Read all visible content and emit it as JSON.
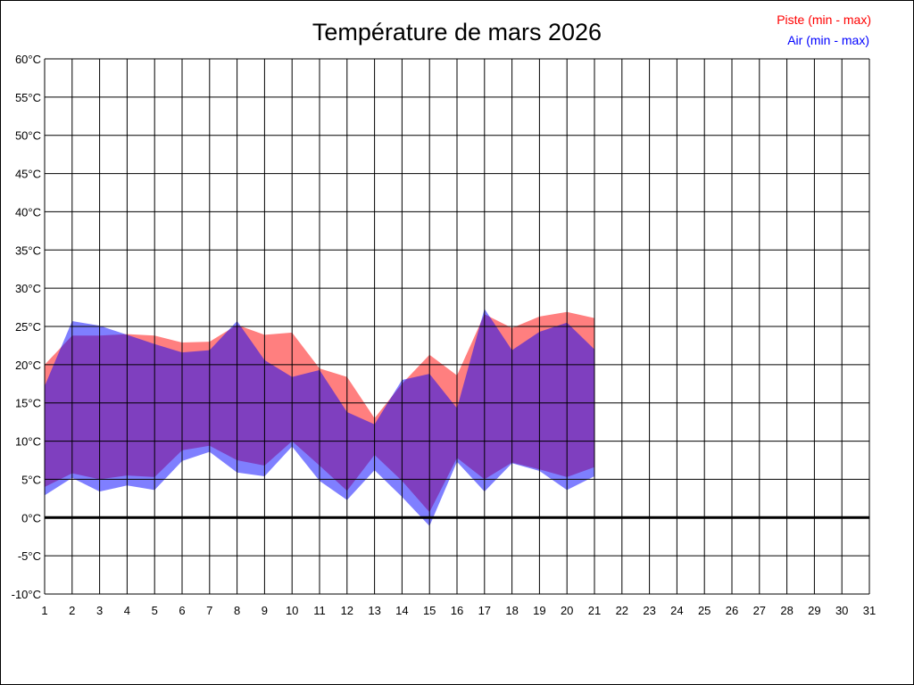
{
  "chart_data": {
    "type": "area",
    "title": "Température de mars 2026",
    "x": [
      1,
      2,
      3,
      4,
      5,
      6,
      7,
      8,
      9,
      10,
      11,
      12,
      13,
      14,
      15,
      16,
      17,
      18,
      19,
      20,
      21
    ],
    "x_ticks": [
      "1",
      "2",
      "3",
      "4",
      "5",
      "6",
      "7",
      "8",
      "9",
      "10",
      "11",
      "12",
      "13",
      "14",
      "15",
      "16",
      "17",
      "18",
      "19",
      "20",
      "21",
      "22",
      "23",
      "24",
      "25",
      "26",
      "27",
      "28",
      "29",
      "30",
      "31"
    ],
    "y_ticks": [
      "60°C",
      "55°C",
      "50°C",
      "45°C",
      "40°C",
      "35°C",
      "30°C",
      "25°C",
      "20°C",
      "15°C",
      "10°C",
      "5°C",
      "0°C",
      "-5°C",
      "-10°C"
    ],
    "xlim": [
      1,
      31
    ],
    "ylim": [
      -10,
      60
    ],
    "grid": true,
    "legend_position": "top-right",
    "series": [
      {
        "name": "Piste (min - max)",
        "color": "#ff0000",
        "min": [
          4.0,
          5.8,
          5.0,
          5.5,
          5.3,
          8.8,
          9.4,
          7.5,
          6.8,
          10.0,
          6.8,
          3.5,
          8.2,
          4.8,
          0.7,
          7.8,
          5.0,
          7.2,
          6.3,
          5.3,
          6.6
        ],
        "max": [
          20.0,
          23.8,
          23.8,
          24.0,
          23.8,
          22.9,
          23.0,
          25.2,
          23.9,
          24.2,
          19.5,
          18.4,
          13.0,
          17.5,
          21.3,
          18.6,
          26.6,
          24.8,
          26.3,
          26.9,
          26.1
        ]
      },
      {
        "name": "Air (min - max)",
        "color": "#0000ff",
        "min": [
          2.9,
          5.2,
          3.4,
          4.2,
          3.6,
          7.4,
          8.6,
          5.9,
          5.4,
          9.3,
          4.8,
          2.3,
          6.2,
          2.7,
          -1.1,
          7.3,
          3.4,
          7.1,
          6.1,
          3.6,
          5.4
        ],
        "max": [
          17.2,
          25.7,
          25.1,
          23.9,
          22.7,
          21.6,
          21.9,
          25.7,
          20.6,
          18.4,
          19.3,
          13.8,
          12.2,
          18.0,
          18.8,
          14.3,
          27.3,
          21.9,
          24.3,
          25.5,
          22.0
        ]
      }
    ],
    "zero_line": 0
  }
}
